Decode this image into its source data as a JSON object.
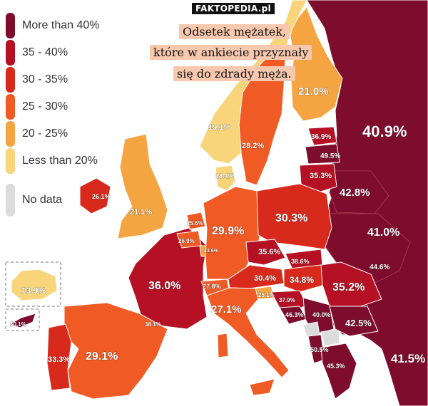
{
  "watermark": "FAKTOPEDIA.pl",
  "caption": {
    "line1": "Odsetek mężatek,",
    "line2": "które w ankiecie przyznały",
    "line3": "się do zdrady męża."
  },
  "legend": {
    "items": [
      {
        "label": "More than 40%",
        "color": "#7e0c2c"
      },
      {
        "label": "35 - 40%",
        "color": "#b51024"
      },
      {
        "label": "30 - 35%",
        "color": "#d72a1c"
      },
      {
        "label": "25 - 30%",
        "color": "#ef5a25"
      },
      {
        "label": "20 - 25%",
        "color": "#f4a441"
      },
      {
        "label": "Less than 20%",
        "color": "#f8d57a"
      }
    ],
    "nodata": {
      "label": "No data",
      "color": "#dcdcdc"
    }
  },
  "colors": {
    "sea": "#ffffff",
    "border": "#ffffff"
  },
  "regions": {
    "russia": {
      "value": "40.9%",
      "value2": "41.0%",
      "value3": "41.5%"
    },
    "finland": {
      "value": "21.0%"
    },
    "sweden": {
      "value": "28.2%"
    },
    "norway": {
      "value": "19.1%"
    },
    "denmark": {
      "value": "18.4%"
    },
    "estonia": {
      "value": "36.9%"
    },
    "latvia": {
      "value": "49.5%"
    },
    "lithuania": {
      "value": "35.3%"
    },
    "belarus": {
      "value": "42.8%"
    },
    "ireland": {
      "value": "26.1%"
    },
    "uk": {
      "value": "21.1%"
    },
    "netherlands": {
      "value": "25.6%"
    },
    "belgium": {
      "value": "26.9%"
    },
    "luxembourg": {
      "value": "23.6%"
    },
    "germany": {
      "value": "29.9%"
    },
    "poland": {
      "value": "30.3%"
    },
    "czechia": {
      "value": "35.6%"
    },
    "slovakia": {
      "value": "38.6%"
    },
    "ukraine_w": {
      "value": "44.6%"
    },
    "austria": {
      "value": "30.4%"
    },
    "hungary": {
      "value": "34.8%"
    },
    "romania": {
      "value": "35.2%"
    },
    "switzerland": {
      "value": "27.8%"
    },
    "slovenia": {
      "value": "25.1%"
    },
    "croatia": {
      "value": "37.9%"
    },
    "serbia": {
      "value": "40.0%"
    },
    "bosnia": {
      "value": "46.3%"
    },
    "bulgaria": {
      "value": "42.5%"
    },
    "albania": {
      "value": "50.5%"
    },
    "greece": {
      "value": "45.3%"
    },
    "france": {
      "value": "36.0%"
    },
    "italy": {
      "value": "27.1%"
    },
    "andorra": {
      "value": "38.1%"
    },
    "spain": {
      "value": "29.1%"
    },
    "portugal": {
      "value": "33.3%"
    },
    "iceland": {
      "value": "13.9%"
    },
    "cyprus": {
      "value": "50.1%"
    }
  }
}
